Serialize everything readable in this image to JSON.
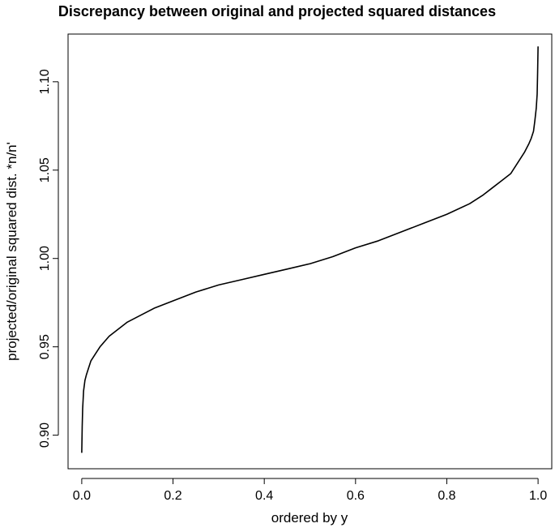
{
  "chart_data": {
    "type": "line",
    "title": "Discrepancy between original and projected squared distances",
    "xlabel": "ordered by y",
    "ylabel": "projected/original squared dist. *n/n'",
    "xlim": [
      -0.03,
      1.03
    ],
    "ylim": [
      0.881,
      1.127
    ],
    "x_ticks": [
      0.0,
      0.2,
      0.4,
      0.6,
      0.8,
      1.0
    ],
    "x_tick_labels": [
      "0.0",
      "0.2",
      "0.4",
      "0.6",
      "0.8",
      "1.0"
    ],
    "y_ticks": [
      0.9,
      0.95,
      1.0,
      1.05,
      1.1
    ],
    "y_tick_labels": [
      "0.90",
      "0.95",
      "1.00",
      "1.05",
      "1.10"
    ],
    "grid": false,
    "legend": "none",
    "line_color": "#000000",
    "series": [
      {
        "x": [
          0.0,
          0.001,
          0.002,
          0.004,
          0.007,
          0.01,
          0.015,
          0.02,
          0.03,
          0.04,
          0.05,
          0.06,
          0.08,
          0.1,
          0.13,
          0.16,
          0.2,
          0.25,
          0.3,
          0.35,
          0.4,
          0.45,
          0.5,
          0.55,
          0.6,
          0.65,
          0.7,
          0.75,
          0.8,
          0.85,
          0.88,
          0.9,
          0.92,
          0.94,
          0.95,
          0.96,
          0.97,
          0.98,
          0.985,
          0.99,
          0.993,
          0.996,
          0.998,
          0.999,
          1.0
        ],
        "y": [
          0.89,
          0.905,
          0.915,
          0.925,
          0.931,
          0.934,
          0.938,
          0.942,
          0.946,
          0.95,
          0.953,
          0.956,
          0.96,
          0.964,
          0.968,
          0.972,
          0.976,
          0.981,
          0.985,
          0.988,
          0.991,
          0.994,
          0.997,
          1.001,
          1.006,
          1.01,
          1.015,
          1.02,
          1.025,
          1.031,
          1.036,
          1.04,
          1.044,
          1.048,
          1.052,
          1.056,
          1.06,
          1.065,
          1.068,
          1.072,
          1.078,
          1.085,
          1.093,
          1.105,
          1.12
        ]
      }
    ]
  }
}
